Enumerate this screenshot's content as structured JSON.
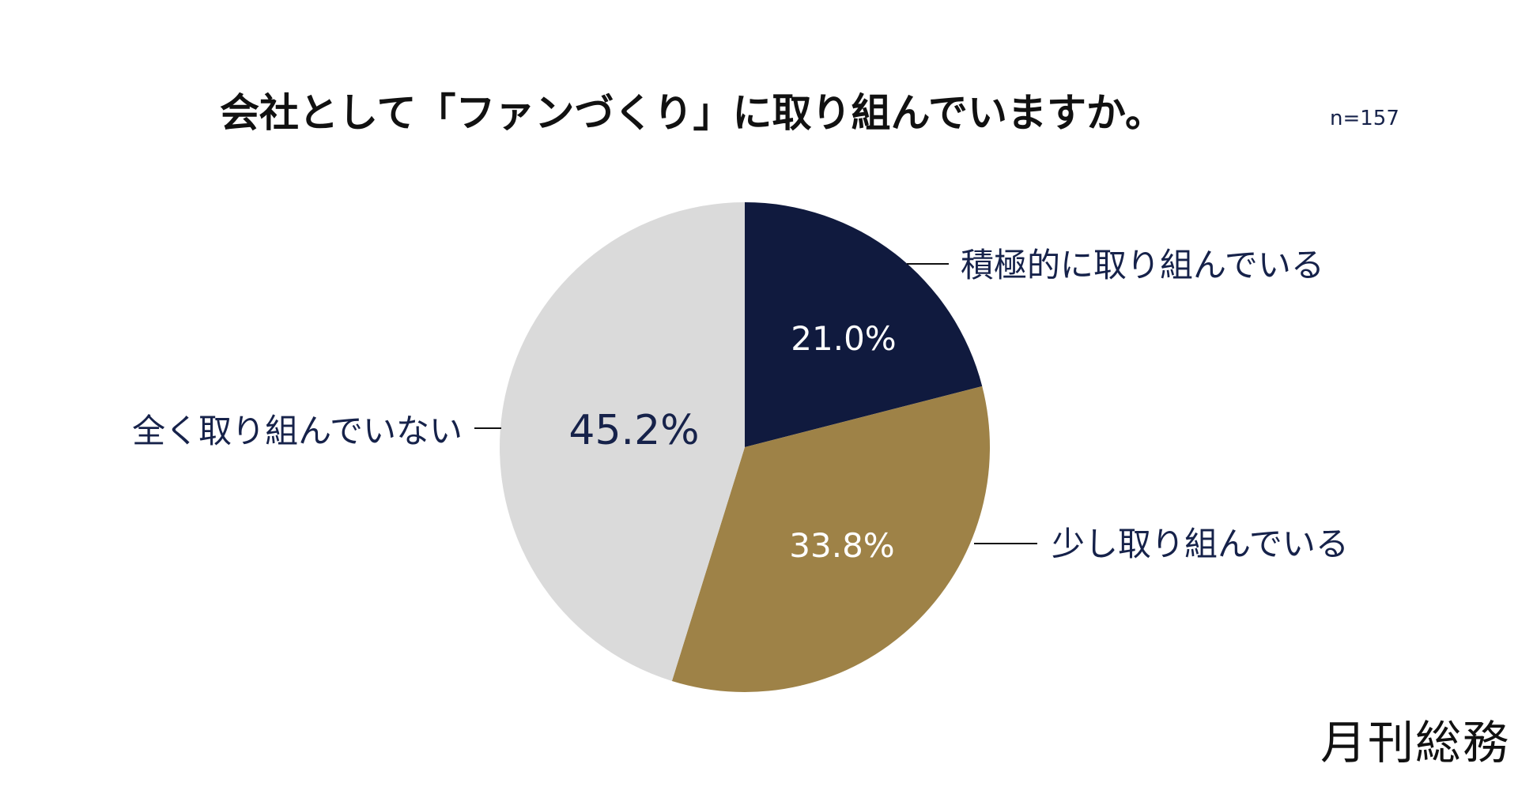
{
  "chart_data": {
    "type": "pie",
    "title": "会社として「ファンづくり」に取り組んでいますか。",
    "sample_size": "n=157",
    "start_angle_deg": 0,
    "direction": "clockwise",
    "slices": [
      {
        "label": "積極的に取り組んでいる",
        "value": 21.0,
        "value_label": "21.0%",
        "color": "#101a3e",
        "label_color": "#ffffff"
      },
      {
        "label": "少し取り組んでいる",
        "value": 33.8,
        "value_label": "33.8%",
        "color": "#9e8247",
        "label_color": "#ffffff"
      },
      {
        "label": "全く取り組んでいない",
        "value": 45.2,
        "value_label": "45.2%",
        "color": "#dadada",
        "label_color": "#16224a"
      }
    ],
    "legend": "none"
  },
  "brand": {
    "name": "月刊総務"
  }
}
